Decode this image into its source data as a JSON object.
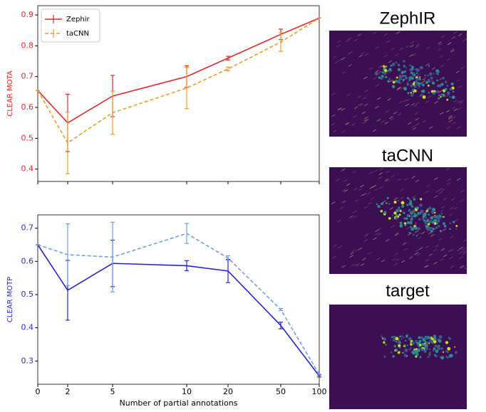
{
  "chart_data": [
    {
      "type": "line",
      "ylabel": "CLEAR MOTA",
      "label_color": "#e8262b",
      "categories": [
        "0",
        "2",
        "5",
        "10",
        "20",
        "50",
        "100"
      ],
      "ylim": [
        0.36,
        0.93
      ],
      "yticks": [
        0.4,
        0.5,
        0.6,
        0.7,
        0.8,
        0.9
      ],
      "legend": "upper left",
      "series": [
        {
          "name": "Zephir",
          "color": "#e8262b",
          "dash": false,
          "values": [
            0.655,
            0.55,
            0.637,
            0.7,
            0.76,
            0.837,
            0.89
          ],
          "errors": [
            0,
            0.093,
            0.067,
            0.035,
            0.006,
            0.017,
            0
          ]
        },
        {
          "name": "taCNN",
          "color": "#f39c1f",
          "dash": true,
          "values": [
            0.655,
            0.485,
            0.583,
            0.663,
            0.725,
            0.812,
            0.89
          ],
          "errors": [
            0,
            0.1,
            0.07,
            0.067,
            0.006,
            0.03,
            0
          ]
        }
      ]
    },
    {
      "type": "line",
      "ylabel": "CLEAR MOTP",
      "label_color": "#2a2ad8",
      "xlabel": "Number of partial annotations",
      "categories": [
        "0",
        "2",
        "5",
        "10",
        "20",
        "50",
        "100"
      ],
      "ylim": [
        0.23,
        0.74
      ],
      "yticks": [
        0.3,
        0.4,
        0.5,
        0.6,
        0.7
      ],
      "series": [
        {
          "color": "#2323d9",
          "dash": false,
          "values": [
            0.65,
            0.513,
            0.594,
            0.587,
            0.571,
            0.407,
            0.255
          ],
          "errors": [
            0,
            0.09,
            0.07,
            0.015,
            0.035,
            0.01,
            0.003
          ]
        },
        {
          "color": "#6ea0ea",
          "dash": true,
          "values": [
            0.65,
            0.62,
            0.613,
            0.684,
            0.61,
            0.455,
            0.26
          ],
          "errors": [
            0,
            0.093,
            0.105,
            0.03,
            0.007,
            0.003,
            0
          ]
        }
      ]
    }
  ],
  "images": [
    {
      "title": "ZephIR"
    },
    {
      "title": "taCNN"
    },
    {
      "title": "target"
    }
  ]
}
